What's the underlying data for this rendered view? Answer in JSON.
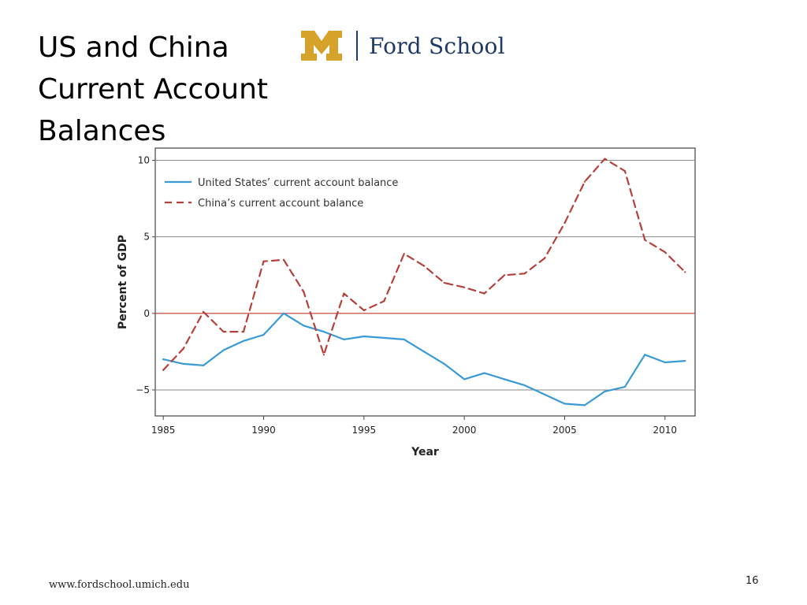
{
  "slide": {
    "title_lines": [
      "US and China",
      "Current Account",
      "Balances"
    ],
    "logo_text": "Ford School",
    "footer_url": "www.fordschool.umich.edu",
    "page_number": "16"
  },
  "colors": {
    "us": "#3a9ad6",
    "china": "#b5413a",
    "zero_line": "#c0392b",
    "brand_gold": "#d7a22a",
    "brand_blue": "#1f3a64"
  },
  "chart_data": {
    "type": "line",
    "xlabel": "Year",
    "ylabel": "Percent of GDP",
    "xlim": [
      1984.6,
      2011.5
    ],
    "ylim": [
      -6.7,
      10.8
    ],
    "x_ticks": [
      1985,
      1990,
      1995,
      2000,
      2005,
      2010
    ],
    "y_ticks": [
      10,
      5,
      0,
      -5
    ],
    "y_tick_labels": [
      "10",
      "5",
      "0",
      "−5"
    ],
    "grid": "horizontal",
    "legend_position": "top-left",
    "x": [
      1985,
      1986,
      1987,
      1988,
      1989,
      1990,
      1991,
      1992,
      1993,
      1994,
      1995,
      1996,
      1997,
      1998,
      1999,
      2000,
      2001,
      2002,
      2003,
      2004,
      2005,
      2006,
      2007,
      2008,
      2009,
      2010,
      2011
    ],
    "series": [
      {
        "name": "United States’ current account balance",
        "style": "solid",
        "values": [
          -3.0,
          -3.3,
          -3.4,
          -2.4,
          -1.8,
          -1.4,
          0.0,
          -0.8,
          -1.2,
          -1.7,
          -1.5,
          -1.6,
          -1.7,
          -2.5,
          -3.3,
          -4.3,
          -3.9,
          -4.3,
          -4.7,
          -5.3,
          -5.9,
          -6.0,
          -5.1,
          -4.8,
          -2.7,
          -3.2,
          -3.1
        ]
      },
      {
        "name": "China’s current account balance",
        "style": "dashed",
        "values": [
          -3.7,
          -2.3,
          0.1,
          -1.2,
          -1.2,
          3.4,
          3.5,
          1.4,
          -2.7,
          1.3,
          0.2,
          0.8,
          3.9,
          3.1,
          2.0,
          1.7,
          1.3,
          2.5,
          2.6,
          3.6,
          5.9,
          8.6,
          10.1,
          9.3,
          4.8,
          4.0,
          2.7
        ]
      }
    ]
  }
}
